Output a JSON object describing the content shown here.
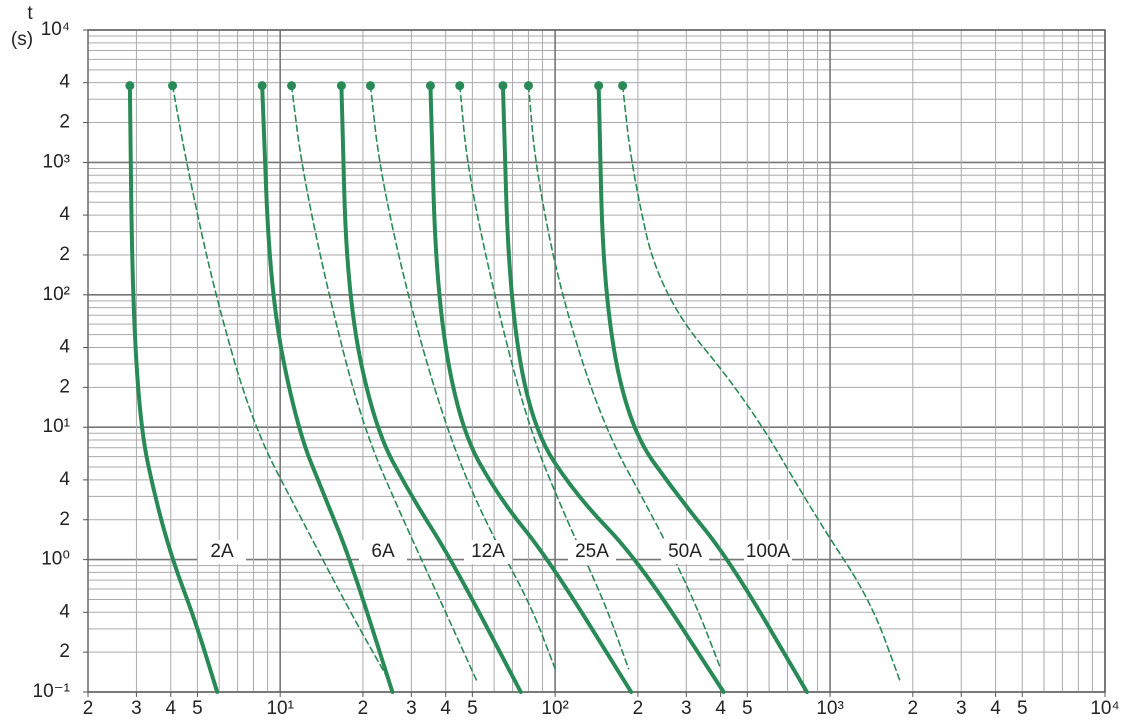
{
  "chart_data": {
    "type": "line",
    "y_label": [
      "t",
      "(s)"
    ],
    "log_x": true,
    "log_y": true,
    "xlim": [
      2,
      10000
    ],
    "ylim": [
      0.1,
      10000
    ],
    "xticks": [
      2,
      3,
      4,
      5,
      {
        "value": 10,
        "label": "10¹"
      },
      {
        "value": 20,
        "label": "2"
      },
      {
        "value": 30,
        "label": "3"
      },
      {
        "value": 40,
        "label": "4"
      },
      {
        "value": 50,
        "label": "5"
      },
      {
        "value": 100,
        "label": "10²"
      },
      {
        "value": 200,
        "label": "2"
      },
      {
        "value": 300,
        "label": "3"
      },
      {
        "value": 400,
        "label": "4"
      },
      {
        "value": 500,
        "label": "5"
      },
      {
        "value": 1000,
        "label": "10³"
      },
      {
        "value": 2000,
        "label": "2"
      },
      {
        "value": 3000,
        "label": "3"
      },
      {
        "value": 4000,
        "label": "4"
      },
      {
        "value": 5000,
        "label": "5"
      },
      {
        "value": 10000,
        "label": "10⁴"
      }
    ],
    "yticks": [
      {
        "value": 10000,
        "label": "10⁴"
      },
      {
        "value": 4000,
        "label": "4"
      },
      {
        "value": 2000,
        "label": "2"
      },
      {
        "value": 1000,
        "label": "10³"
      },
      {
        "value": 400,
        "label": "4"
      },
      {
        "value": 200,
        "label": "2"
      },
      {
        "value": 100,
        "label": "10²"
      },
      {
        "value": 40,
        "label": "4"
      },
      {
        "value": 20,
        "label": "2"
      },
      {
        "value": 10,
        "label": "10¹"
      },
      4,
      2,
      {
        "value": 1,
        "label": "10⁰"
      },
      {
        "value": 0.4,
        "label": "4"
      },
      {
        "value": 0.2,
        "label": "2"
      },
      {
        "value": 0.1,
        "label": "10⁻¹"
      }
    ],
    "xgrid": [
      2,
      3,
      4,
      5,
      6,
      7,
      8,
      9,
      10,
      20,
      30,
      40,
      50,
      60,
      70,
      80,
      90,
      100,
      200,
      300,
      400,
      500,
      600,
      700,
      800,
      900,
      1000,
      2000,
      3000,
      4000,
      5000,
      6000,
      7000,
      8000,
      9000,
      10000
    ],
    "ygrid": [
      0.1,
      0.2,
      0.3,
      0.4,
      0.5,
      0.6,
      0.7,
      0.8,
      0.9,
      1,
      2,
      3,
      4,
      5,
      6,
      7,
      8,
      9,
      10,
      20,
      30,
      40,
      50,
      60,
      70,
      80,
      90,
      100,
      200,
      300,
      400,
      500,
      600,
      700,
      800,
      900,
      1000,
      2000,
      3000,
      4000,
      5000,
      6000,
      7000,
      8000,
      9000,
      10000
    ],
    "grid": true,
    "color": "#2a8a57",
    "fuses": [
      {
        "name": "2A",
        "min_x": [
          2.84,
          2.9,
          3.1,
          3.5,
          4.05,
          4.9,
          5.9
        ],
        "min_t": [
          3800,
          100,
          10,
          3,
          1,
          0.35,
          0.1
        ],
        "max_x": [
          4.06,
          4.6,
          5.8,
          8,
          12,
          18,
          25
        ],
        "max_t": [
          3800,
          900,
          100,
          10,
          2,
          0.4,
          0.12
        ]
      },
      {
        "name": "6A",
        "min_x": [
          8.6,
          9.2,
          11.5,
          14.5,
          18,
          25.6
        ],
        "min_t": [
          3800,
          100,
          10,
          3,
          1,
          0.1
        ],
        "max_x": [
          11,
          12,
          15,
          20,
          28,
          40,
          52
        ],
        "max_t": [
          3800,
          900,
          100,
          10,
          2,
          0.4,
          0.12
        ]
      },
      {
        "name": "12A",
        "min_x": [
          16.7,
          17.5,
          22,
          30,
          42,
          75
        ],
        "min_t": [
          3800,
          100,
          10,
          3,
          1,
          0.1
        ],
        "max_x": [
          21.3,
          23,
          29,
          40,
          55,
          80,
          100
        ],
        "max_t": [
          3800,
          900,
          100,
          10,
          2,
          0.5,
          0.15
        ]
      },
      {
        "name": "25A",
        "min_x": [
          35.2,
          37,
          45,
          62,
          95,
          189
        ],
        "min_t": [
          3800,
          100,
          10,
          3,
          1,
          0.1
        ],
        "max_x": [
          45,
          48,
          60,
          80,
          110,
          150,
          185
        ],
        "max_t": [
          3800,
          900,
          100,
          10,
          2,
          0.5,
          0.15
        ]
      },
      {
        "name": "50A",
        "min_x": [
          64.6,
          68,
          82,
          120,
          200,
          410
        ],
        "min_t": [
          3800,
          100,
          10,
          3,
          1,
          0.1
        ],
        "max_x": [
          80,
          85,
          105,
          150,
          230,
          320,
          400
        ],
        "max_t": [
          3800,
          900,
          100,
          10,
          2,
          0.5,
          0.15
        ]
      },
      {
        "name": "100A",
        "min_x": [
          144,
          150,
          185,
          280,
          430,
          824
        ],
        "min_t": [
          3800,
          100,
          10,
          3,
          1,
          0.1
        ],
        "max_x": [
          176,
          190,
          240,
          500,
          900,
          1400,
          1800
        ],
        "max_t": [
          3800,
          900,
          100,
          16,
          2,
          0.5,
          0.12
        ]
      }
    ]
  }
}
